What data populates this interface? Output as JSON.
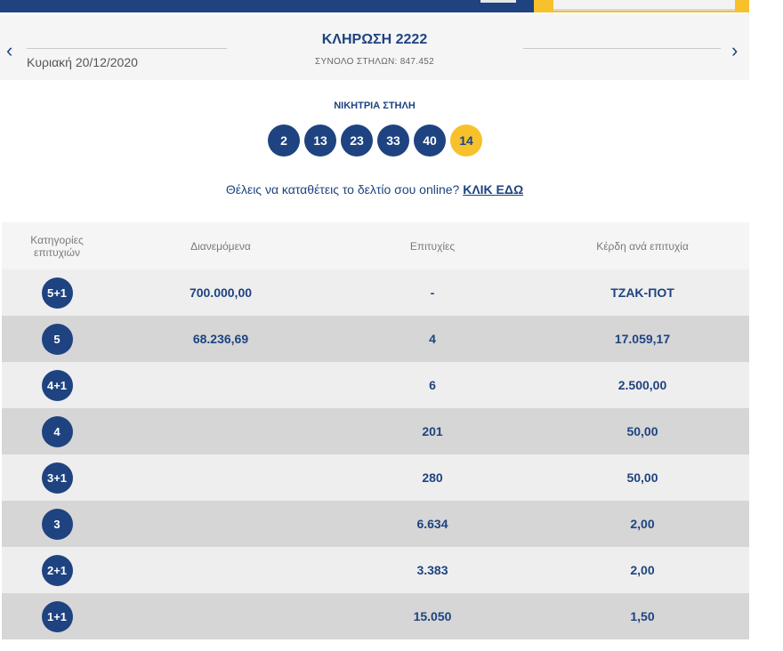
{
  "draw": {
    "date": "Κυριακή 20/12/2020",
    "title": "ΚΛΗΡΩΣΗ 2222",
    "total_columns": "ΣΥΝΟΛΟ ΣΤΗΛΩΝ: 847.452",
    "prev_icon": "chevron-left-icon",
    "next_icon": "chevron-right-icon"
  },
  "winning": {
    "label": "ΝΙΚΗΤΡΙΑ ΣΤΗΛΗ",
    "numbers": [
      "2",
      "13",
      "23",
      "33",
      "40"
    ],
    "bonus": "14"
  },
  "online": {
    "text": "Θέλεις να καταθέτεις το δελτίο σου online?",
    "link": "ΚΛΙΚ ΕΔΩ"
  },
  "table": {
    "headers": [
      "Κατηγορίες επιτυχιών",
      "Διανεμόμενα",
      "Επιτυχίες",
      "Κέρδη ανά επιτυχία"
    ],
    "rows": [
      {
        "category": "5+1",
        "distributed": "700.000,00",
        "winners": "-",
        "prize": "ΤΖΑΚ-ΠΟΤ"
      },
      {
        "category": "5",
        "distributed": "68.236,69",
        "winners": "4",
        "prize": "17.059,17"
      },
      {
        "category": "4+1",
        "distributed": "",
        "winners": "6",
        "prize": "2.500,00"
      },
      {
        "category": "4",
        "distributed": "",
        "winners": "201",
        "prize": "50,00"
      },
      {
        "category": "3+1",
        "distributed": "",
        "winners": "280",
        "prize": "50,00"
      },
      {
        "category": "3",
        "distributed": "",
        "winners": "6.634",
        "prize": "2,00"
      },
      {
        "category": "2+1",
        "distributed": "",
        "winners": "3.383",
        "prize": "2,00"
      },
      {
        "category": "1+1",
        "distributed": "",
        "winners": "15.050",
        "prize": "1,50"
      }
    ]
  },
  "colors": {
    "brand_blue": "#1e4380",
    "bonus_yellow": "#f7c12c",
    "row_light": "#eeeeee",
    "row_dark": "#d6d6d6"
  }
}
